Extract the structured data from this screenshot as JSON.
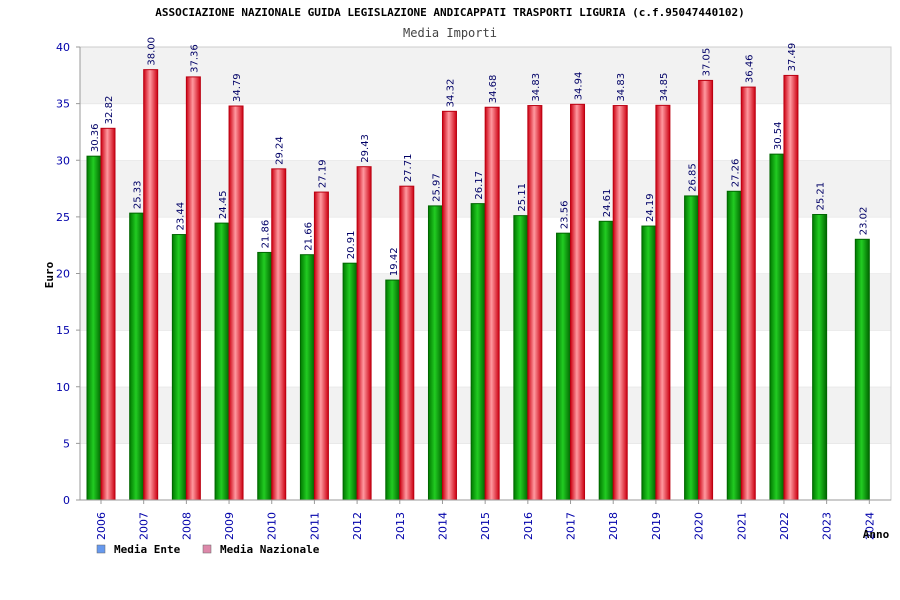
{
  "chart_data": {
    "type": "bar",
    "title": "ASSOCIAZIONE NAZIONALE GUIDA LEGISLAZIONE ANDICAPPATI TRASPORTI LIGURIA (c.f.95047440102)",
    "subtitle": "Media Importi",
    "xlabel": "Anno",
    "ylabel": "Euro",
    "ylim": [
      0,
      40
    ],
    "yticks": [
      0,
      5,
      10,
      15,
      20,
      25,
      30,
      35,
      40
    ],
    "grid": "horizontal bands",
    "legend_position": "bottom-left",
    "categories": [
      "2006",
      "2007",
      "2008",
      "2009",
      "2010",
      "2011",
      "2012",
      "2013",
      "2014",
      "2015",
      "2016",
      "2017",
      "2018",
      "2019",
      "2020",
      "2021",
      "2022",
      "2023",
      "2024"
    ],
    "series": [
      {
        "name": "Media Ente",
        "color": "#00aa00",
        "legend_color": "#6699ee",
        "values": [
          30.36,
          25.33,
          23.44,
          24.45,
          21.86,
          21.66,
          20.91,
          19.42,
          25.97,
          26.17,
          25.11,
          23.56,
          24.61,
          24.19,
          26.85,
          27.26,
          30.54,
          25.21,
          23.02
        ],
        "labels": [
          "30.36",
          "25.33",
          "23.44",
          "24.45",
          "21.86",
          "21.66",
          "20.91",
          "19.42",
          "25.97",
          "26.17",
          "25.11",
          "23.56",
          "24.61",
          "24.19",
          "26.85",
          "27.26",
          "30.54",
          "25.21",
          "23.02"
        ]
      },
      {
        "name": "Media Nazionale",
        "color": "#ee2233",
        "legend_color": "#dd88aa",
        "values": [
          32.82,
          38.0,
          37.36,
          34.79,
          29.24,
          27.19,
          29.43,
          27.71,
          34.32,
          34.68,
          34.83,
          34.94,
          34.83,
          34.85,
          37.05,
          36.46,
          37.49,
          null,
          null
        ],
        "labels": [
          "32.82",
          "38.00",
          "37.36",
          "34.79",
          "29.24",
          "27.19",
          "29.43",
          "27.71",
          "34.32",
          "34.68",
          "34.83",
          "34.94",
          "34.83",
          "34.85",
          "37.05",
          "36.46",
          "37.49",
          null,
          null
        ]
      }
    ]
  }
}
